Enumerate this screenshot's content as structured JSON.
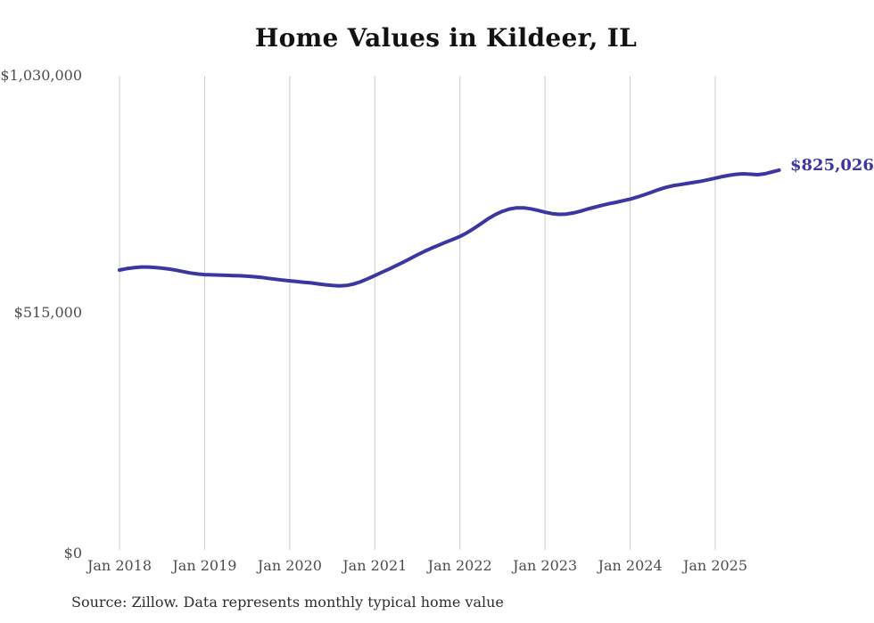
{
  "chart_data": {
    "type": "line",
    "title": "Home Values in Kildeer, IL",
    "end_label": "$825,026",
    "final_value": 825026,
    "source": "Source: Zillow. Data represents monthly typical home value",
    "x_tick_labels": [
      "Jan 2018",
      "Jan 2019",
      "Jan 2020",
      "Jan 2021",
      "Jan 2022",
      "Jan 2023",
      "Jan 2024",
      "Jan 2025"
    ],
    "x_tick_indices": [
      0,
      12,
      24,
      36,
      48,
      60,
      72,
      84
    ],
    "y_tick_labels": [
      "$0",
      "$515,000",
      "$1,030,000"
    ],
    "y_ticks": [
      0,
      515000,
      1030000
    ],
    "ylim": [
      0,
      1030000
    ],
    "x_range": [
      "Jan 2018",
      "Oct 2025"
    ],
    "points_frequency": "monthly",
    "grid": "vertical-only",
    "legend": "none",
    "colors": {
      "line": "#3c37a0",
      "end_label": "#3c37a0",
      "grid": "#cccccc",
      "axis_text": "#4d4d4d",
      "title_text": "#121212",
      "source_text": "#2e2e2e",
      "background": "#ffffff"
    },
    "series": [
      {
        "name": "Typical home value",
        "values": [
          608000,
          611000,
          613000,
          614500,
          614500,
          613500,
          612000,
          610000,
          607500,
          604500,
          601500,
          599500,
          598000,
          597500,
          597000,
          596500,
          596000,
          595500,
          594500,
          593500,
          592000,
          590000,
          588000,
          586000,
          584500,
          583000,
          581500,
          580000,
          578000,
          576000,
          574500,
          573500,
          574500,
          577500,
          582500,
          589000,
          596000,
          603000,
          610000,
          617500,
          625000,
          633000,
          641000,
          648500,
          655500,
          662000,
          668500,
          674500,
          681000,
          689000,
          698500,
          709000,
          719500,
          728500,
          735500,
          740500,
          743000,
          743000,
          741000,
          737500,
          733500,
          730500,
          729000,
          729500,
          732000,
          736000,
          740500,
          744500,
          748500,
          752000,
          755000,
          758500,
          762000,
          766500,
          771500,
          777000,
          782500,
          787500,
          791000,
          793500,
          796000,
          798500,
          801000,
          804000,
          807500,
          811000,
          814000,
          816000,
          817000,
          816000,
          815000,
          817000,
          821000,
          825026
        ]
      }
    ]
  }
}
